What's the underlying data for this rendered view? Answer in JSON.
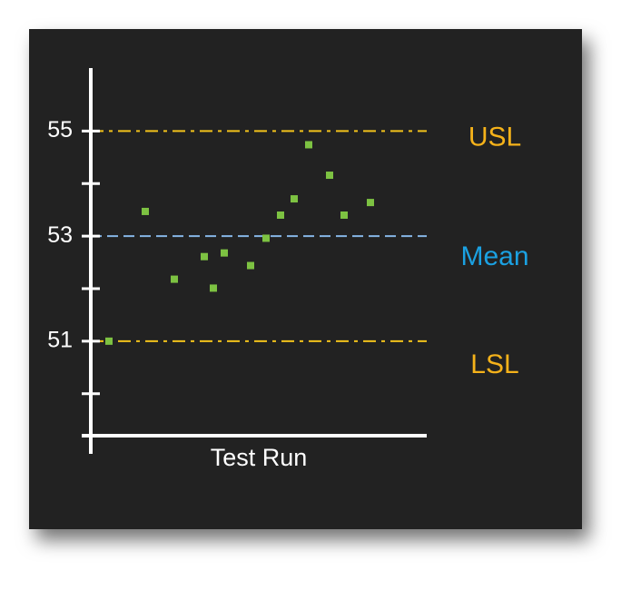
{
  "chart_data": {
    "type": "scatter",
    "xlabel": "Test Run",
    "x": [
      2,
      6,
      9.2,
      12.5,
      13.5,
      14.7,
      17.6,
      19.3,
      20.9,
      22.4,
      24,
      26.3,
      27.9,
      30.8
    ],
    "values": [
      51.0,
      53.47,
      52.18,
      52.61,
      52.01,
      52.68,
      52.44,
      52.96,
      53.4,
      53.71,
      54.74,
      54.16,
      53.4,
      53.64
    ],
    "color": "#7dc242",
    "xlim": [
      0,
      37
    ],
    "ylim": [
      49.2,
      56.2
    ],
    "yticks": [
      51,
      53,
      55
    ],
    "minor_yticks": [
      50,
      52,
      54
    ],
    "reference_lines": [
      {
        "name": "USL",
        "value": 55,
        "color": "#f2c21b",
        "style": "dashdot",
        "label_color": "#f5b21a"
      },
      {
        "name": "Mean",
        "value": 53,
        "color": "#86b6e6",
        "style": "dashed",
        "label_color": "#1ba1e2"
      },
      {
        "name": "LSL",
        "value": 51,
        "color": "#f2c21b",
        "style": "dashdot",
        "label_color": "#f5b21a"
      }
    ]
  }
}
